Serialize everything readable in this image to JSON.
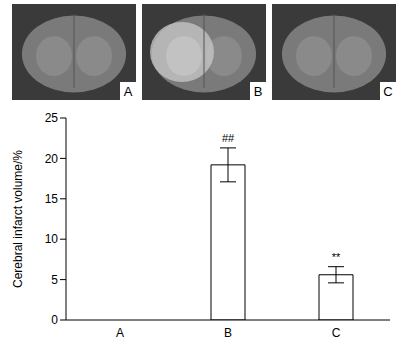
{
  "chart_data": {
    "type": "bar",
    "categories": [
      "A",
      "B",
      "C"
    ],
    "values": [
      0,
      19.2,
      5.6
    ],
    "errors": [
      0,
      2.1,
      1.0
    ],
    "color": "#ffffff",
    "ylabel": "Cerebral infarct volume/%",
    "ylim": [
      0,
      25
    ],
    "yticks": [
      0,
      5,
      10,
      15,
      20,
      25
    ],
    "grid": false,
    "annotations": [
      {
        "category": "B",
        "text": "##"
      },
      {
        "category": "C",
        "text": "**"
      }
    ]
  }
}
